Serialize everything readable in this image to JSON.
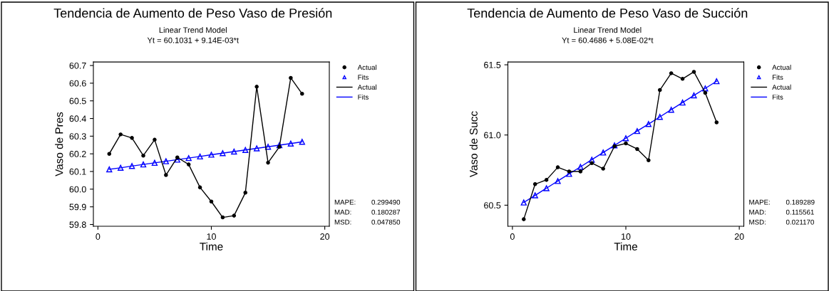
{
  "chart_data": [
    {
      "type": "line",
      "title": "Tendencia de Aumento de Peso Vaso de Presión",
      "subtitle": "Linear Trend Model\nYt = 60.1031 + 9.14E-03*t",
      "xlabel": "Time",
      "ylabel": "Vaso de Pres",
      "x": [
        1,
        2,
        3,
        4,
        5,
        6,
        7,
        8,
        9,
        10,
        11,
        12,
        13,
        14,
        15,
        16,
        17,
        18
      ],
      "series": [
        {
          "name": "Actual",
          "color": "#000000",
          "marker": "circle",
          "values": [
            60.2,
            60.31,
            60.29,
            60.19,
            60.28,
            60.08,
            60.18,
            60.14,
            60.01,
            59.93,
            59.84,
            59.85,
            59.98,
            60.58,
            60.15,
            60.24,
            60.63,
            60.54
          ]
        },
        {
          "name": "Fits",
          "color": "#0000ff",
          "marker": "triangle",
          "values": [
            60.112,
            60.121,
            60.131,
            60.14,
            60.149,
            60.158,
            60.167,
            60.176,
            60.185,
            60.195,
            60.204,
            60.213,
            60.222,
            60.231,
            60.24,
            60.249,
            60.258,
            60.268
          ]
        }
      ],
      "xlim": [
        -0.4,
        20.4
      ],
      "xticks": [
        0,
        10,
        20
      ],
      "ylim": [
        59.79,
        60.72
      ],
      "yticks": [
        59.8,
        59.9,
        {
          "value": 60,
          "label": "60.0"
        },
        60.1,
        60.2,
        60.3,
        60.4,
        60.5,
        60.6,
        60.7
      ],
      "grid": false,
      "legend": "top right",
      "annotations": [
        "MAPE:",
        "0.299490",
        "MAD:",
        "0.180287",
        "MSD:",
        "0.047850"
      ]
    },
    {
      "type": "line",
      "title": "Tendencia de Aumento de Peso Vaso de Succión",
      "subtitle": "Linear Trend Model\nYt = 60.4686 + 5.08E-02*t",
      "xlabel": "Time",
      "ylabel": "Vaso de Succ",
      "x": [
        1,
        2,
        3,
        4,
        5,
        6,
        7,
        8,
        9,
        10,
        11,
        12,
        13,
        14,
        15,
        16,
        17,
        18
      ],
      "series": [
        {
          "name": "Actual",
          "color": "#000000",
          "marker": "circle",
          "values": [
            60.4,
            60.65,
            60.68,
            60.77,
            60.74,
            60.74,
            60.8,
            60.76,
            60.92,
            60.94,
            60.9,
            60.82,
            61.32,
            61.44,
            61.4,
            61.45,
            61.3,
            61.09
          ]
        },
        {
          "name": "Fits",
          "color": "#0000ff",
          "marker": "triangle",
          "values": [
            60.519,
            60.57,
            60.621,
            60.672,
            60.723,
            60.773,
            60.824,
            60.875,
            60.926,
            60.977,
            61.028,
            61.078,
            61.129,
            61.18,
            61.231,
            61.282,
            61.332,
            61.383
          ]
        }
      ],
      "xlim": [
        -0.4,
        20.4
      ],
      "xticks": [
        0,
        10,
        20
      ],
      "ylim": [
        60.35,
        61.52
      ],
      "yticks": [
        60.5,
        {
          "value": 61,
          "label": "61.0"
        },
        61.5
      ],
      "grid": false,
      "legend": "top right",
      "annotations": [
        "MAPE:",
        "0.189289",
        "MAD:",
        "0.115561",
        "MSD:",
        "0.021170"
      ]
    }
  ]
}
